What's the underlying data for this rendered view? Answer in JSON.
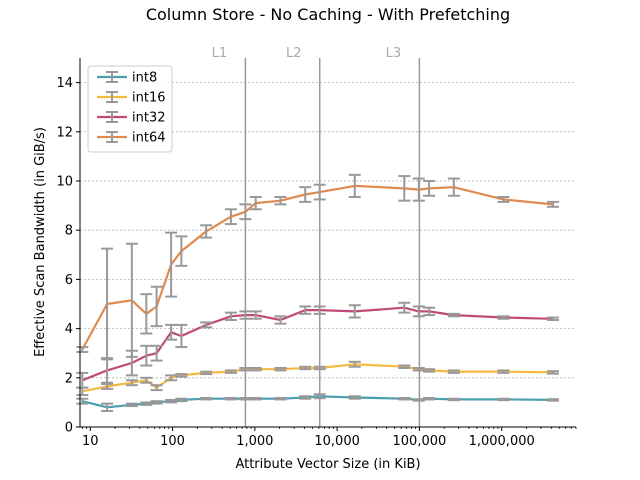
{
  "chart_data": {
    "type": "line",
    "title": "Column Store - No Caching - With Prefetching",
    "xlabel": "Attribute Vector Size (in KiB)",
    "ylabel": "Effective Scan Bandwidth (in GiB/s)",
    "xscale": "log",
    "xlim": [
      7.5,
      8000000
    ],
    "ylim": [
      0,
      15
    ],
    "xticks": [
      10,
      100,
      1000,
      10000,
      100000,
      1000000
    ],
    "xtick_labels": [
      "10",
      "100",
      "1,000",
      "10,000",
      "100,000",
      "1,000,000"
    ],
    "yticks": [
      0,
      2,
      4,
      6,
      8,
      10,
      12,
      14
    ],
    "ytick_labels": [
      "0",
      "2",
      "4",
      "6",
      "8",
      "10",
      "12",
      "14"
    ],
    "legend_position": "top-left",
    "cache_lines": [
      {
        "label": "L1",
        "x": 768
      },
      {
        "label": "L2",
        "x": 6144
      },
      {
        "label": "L3",
        "x": 100000
      }
    ],
    "series": [
      {
        "name": "int8",
        "color": "#4a9fb0",
        "x": [
          8,
          16,
          32,
          48,
          64,
          96,
          128,
          256,
          512,
          768,
          1024,
          2048,
          4096,
          6144,
          16384,
          65536,
          98304,
          131072,
          262144,
          1048576,
          4194304
        ],
        "y": [
          1.05,
          0.8,
          0.9,
          0.95,
          1.0,
          1.05,
          1.1,
          1.15,
          1.15,
          1.15,
          1.15,
          1.15,
          1.2,
          1.25,
          1.2,
          1.15,
          1.1,
          1.15,
          1.12,
          1.12,
          1.1
        ],
        "err": [
          0.1,
          0.15,
          0.05,
          0.05,
          0.05,
          0.05,
          0.05,
          0.03,
          0.03,
          0.03,
          0.03,
          0.03,
          0.05,
          0.08,
          0.05,
          0.03,
          0.03,
          0.03,
          0.03,
          0.03,
          0.03
        ]
      },
      {
        "name": "int16",
        "color": "#f5b942",
        "x": [
          8,
          16,
          32,
          48,
          64,
          96,
          128,
          256,
          512,
          768,
          1024,
          2048,
          4096,
          6144,
          16384,
          65536,
          98304,
          131072,
          262144,
          1048576,
          4194304
        ],
        "y": [
          1.45,
          1.65,
          1.8,
          1.9,
          1.6,
          2.0,
          2.1,
          2.2,
          2.25,
          2.35,
          2.35,
          2.35,
          2.4,
          2.4,
          2.55,
          2.45,
          2.35,
          2.3,
          2.25,
          2.25,
          2.22
        ],
        "err": [
          0.15,
          0.1,
          0.1,
          0.1,
          0.1,
          0.1,
          0.05,
          0.05,
          0.05,
          0.05,
          0.05,
          0.05,
          0.05,
          0.05,
          0.1,
          0.05,
          0.05,
          0.05,
          0.05,
          0.05,
          0.05
        ]
      },
      {
        "name": "int32",
        "color": "#c0497a",
        "x": [
          8,
          16,
          32,
          48,
          64,
          96,
          128,
          256,
          512,
          768,
          1024,
          2048,
          4096,
          6144,
          16384,
          65536,
          98304,
          131072,
          262144,
          1048576,
          4194304
        ],
        "y": [
          1.9,
          2.3,
          2.6,
          2.9,
          3.0,
          3.85,
          3.7,
          4.15,
          4.5,
          4.55,
          4.55,
          4.35,
          4.75,
          4.75,
          4.7,
          4.85,
          4.7,
          4.7,
          4.55,
          4.45,
          4.4
        ],
        "err": [
          0.3,
          0.5,
          0.5,
          0.4,
          0.3,
          0.3,
          0.45,
          0.1,
          0.15,
          0.15,
          0.15,
          0.15,
          0.15,
          0.15,
          0.25,
          0.2,
          0.2,
          0.15,
          0.05,
          0.05,
          0.05
        ]
      },
      {
        "name": "int64",
        "color": "#e08a4f",
        "x": [
          8,
          16,
          32,
          48,
          64,
          96,
          128,
          256,
          512,
          768,
          1024,
          2048,
          4096,
          6144,
          16384,
          65536,
          98304,
          131072,
          262144,
          1048576,
          4194304
        ],
        "y": [
          3.15,
          5.0,
          5.15,
          4.6,
          4.9,
          6.6,
          7.15,
          7.95,
          8.55,
          8.75,
          9.1,
          9.2,
          9.45,
          9.55,
          9.8,
          9.7,
          9.65,
          9.7,
          9.75,
          9.25,
          9.05
        ],
        "err": [
          0.1,
          2.25,
          2.3,
          0.8,
          0.8,
          1.3,
          0.6,
          0.25,
          0.3,
          0.3,
          0.25,
          0.15,
          0.3,
          0.3,
          0.45,
          0.5,
          0.45,
          0.3,
          0.35,
          0.1,
          0.1
        ]
      }
    ]
  }
}
